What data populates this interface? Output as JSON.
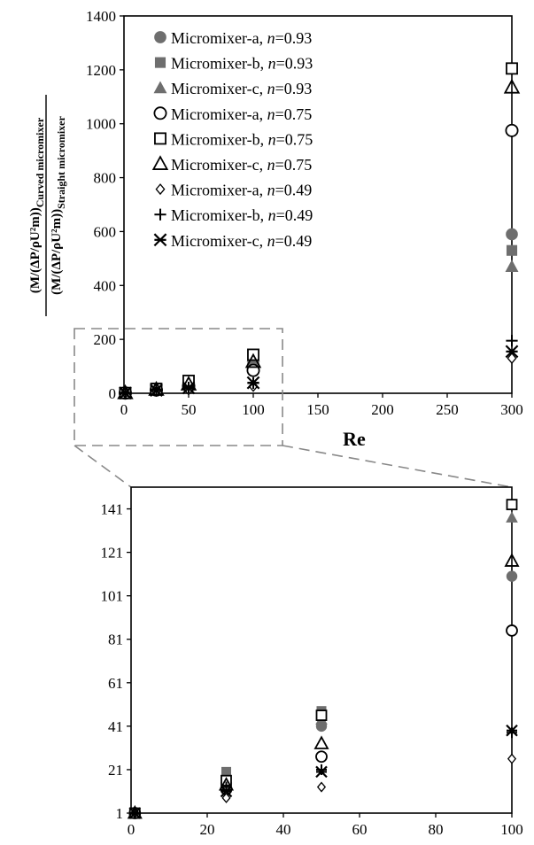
{
  "chart_data": [
    {
      "type": "scatter",
      "xlabel": "Re",
      "ylabel_numerator": "(M/(ΔP/ρU²m))Curved micromixer",
      "ylabel_denominator": "(M/(ΔP/ρU²m))Straight micromixer",
      "xlim": [
        0,
        300
      ],
      "ylim": [
        0,
        1400
      ],
      "x_ticks": [
        0,
        50,
        100,
        150,
        200,
        250,
        300
      ],
      "y_ticks": [
        0,
        200,
        400,
        600,
        800,
        1000,
        1200,
        1400
      ],
      "legend_position": "top-left",
      "series": [
        {
          "name": "Micromixer-a, n=0.93",
          "label_prefix": "Micromixer-a, ",
          "n_symbol": "n",
          "n_value": "=0.93",
          "marker": "filled-circle",
          "color": "#6e6e6e",
          "points": [
            [
              1,
              1
            ],
            [
              25,
              14
            ],
            [
              50,
              41
            ],
            [
              100,
              110
            ],
            [
              300,
              590
            ]
          ]
        },
        {
          "name": "Micromixer-b, n=0.93",
          "label_prefix": "Micromixer-b, ",
          "n_symbol": "n",
          "n_value": "=0.93",
          "marker": "filled-square",
          "color": "#6e6e6e",
          "points": [
            [
              1,
              1
            ],
            [
              25,
              20
            ],
            [
              50,
              48
            ],
            [
              100,
              143
            ],
            [
              300,
              530
            ]
          ]
        },
        {
          "name": "Micromixer-c, n=0.93",
          "label_prefix": "Micromixer-c, ",
          "n_symbol": "n",
          "n_value": "=0.93",
          "marker": "filled-triangle",
          "color": "#6e6e6e",
          "points": [
            [
              1,
              1
            ],
            [
              25,
              17
            ],
            [
              50,
              44
            ],
            [
              100,
              137
            ],
            [
              300,
              470
            ]
          ]
        },
        {
          "name": "Micromixer-a, n=0.75",
          "label_prefix": "Micromixer-a, ",
          "n_symbol": "n",
          "n_value": "=0.75",
          "marker": "open-circle",
          "color": "#000000",
          "points": [
            [
              1,
              1
            ],
            [
              25,
              12
            ],
            [
              50,
              27
            ],
            [
              100,
              85
            ],
            [
              300,
              975
            ]
          ]
        },
        {
          "name": "Micromixer-b, n=0.75",
          "label_prefix": "Micromixer-b, ",
          "n_symbol": "n",
          "n_value": "=0.75",
          "marker": "open-square",
          "color": "#000000",
          "points": [
            [
              1,
              1
            ],
            [
              25,
              16
            ],
            [
              50,
              46
            ],
            [
              100,
              143
            ],
            [
              300,
              1205
            ]
          ]
        },
        {
          "name": "Micromixer-c, n=0.75",
          "label_prefix": "Micromixer-c, ",
          "n_symbol": "n",
          "n_value": "=0.75",
          "marker": "open-triangle",
          "color": "#000000",
          "points": [
            [
              1,
              1
            ],
            [
              25,
              14
            ],
            [
              50,
              33
            ],
            [
              100,
              117
            ],
            [
              300,
              1135
            ]
          ]
        },
        {
          "name": "Micromixer-a, n=0.49",
          "label_prefix": "Micromixer-a, ",
          "n_symbol": "n",
          "n_value": "=0.49",
          "marker": "open-diamond",
          "color": "#000000",
          "points": [
            [
              1,
              1
            ],
            [
              25,
              8
            ],
            [
              50,
              13
            ],
            [
              100,
              26
            ],
            [
              300,
              130
            ]
          ]
        },
        {
          "name": "Micromixer-b, n=0.49",
          "label_prefix": "Micromixer-b, ",
          "n_symbol": "n",
          "n_value": "=0.49",
          "marker": "plus",
          "color": "#000000",
          "points": [
            [
              1,
              1
            ],
            [
              25,
              13
            ],
            [
              50,
              21
            ],
            [
              100,
              38
            ],
            [
              300,
              195
            ]
          ]
        },
        {
          "name": "Micromixer-c, n=0.49",
          "label_prefix": "Micromixer-c, ",
          "n_symbol": "n",
          "n_value": "=0.49",
          "marker": "asterisk",
          "color": "#000000",
          "points": [
            [
              1,
              1
            ],
            [
              25,
              11
            ],
            [
              50,
              20
            ],
            [
              100,
              39
            ],
            [
              300,
              155
            ]
          ]
        }
      ]
    },
    {
      "type": "scatter",
      "role": "zoomed inset of the main chart",
      "xlim": [
        0,
        100
      ],
      "ylim": [
        1,
        151
      ],
      "x_ticks": [
        0,
        20,
        40,
        60,
        80,
        100
      ],
      "y_ticks": [
        1,
        21,
        41,
        61,
        81,
        101,
        121,
        141
      ],
      "series_ref": "same series as main chart"
    }
  ]
}
